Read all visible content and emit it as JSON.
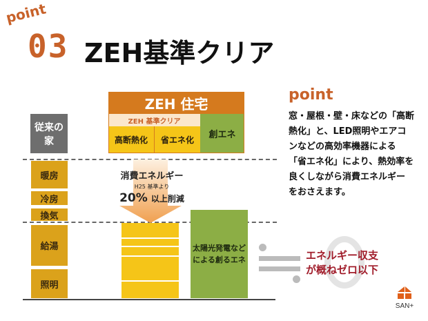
{
  "header": {
    "point_tag": "point",
    "number": "03",
    "title": "ZEH基準クリア"
  },
  "zeh": {
    "title": "ZEH 住宅",
    "band": "ZEH 基準クリア",
    "insulation": "高断熱化",
    "energy_saving": "省エネ化",
    "creation": "創エネ"
  },
  "conventional": {
    "label": "従来の家",
    "items": [
      "暖房",
      "冷房",
      "換気",
      "給湯",
      "照明"
    ]
  },
  "arrow": {
    "line1": "消費エネルギー",
    "line2": "H25 基準より",
    "percent": "20%",
    "line3": "以上削減"
  },
  "solar": {
    "line1": "太陽光発電など",
    "line2": "による創るエネ"
  },
  "balance": {
    "line1": "エネルギー収支",
    "line2": "が概ねゼロ以下"
  },
  "side": {
    "heading": "point",
    "lines": [
      "窓・屋根・壁・床などの「高断",
      "熱化」と、LED照明やエアコ",
      "ンなどの高効率機器による",
      "「省エネ化」により、熱効率を",
      "良くしながら消費エネルギー",
      "をおさえます。"
    ]
  },
  "logo": {
    "text": "SAN+"
  },
  "colors": {
    "accent": "#c8622a",
    "orange": "#d57a1e",
    "yellow": "#f5c518",
    "mustard": "#dba21b",
    "green": "#8cae45",
    "gray": "#6e6e6e",
    "red": "#a01c2a"
  }
}
